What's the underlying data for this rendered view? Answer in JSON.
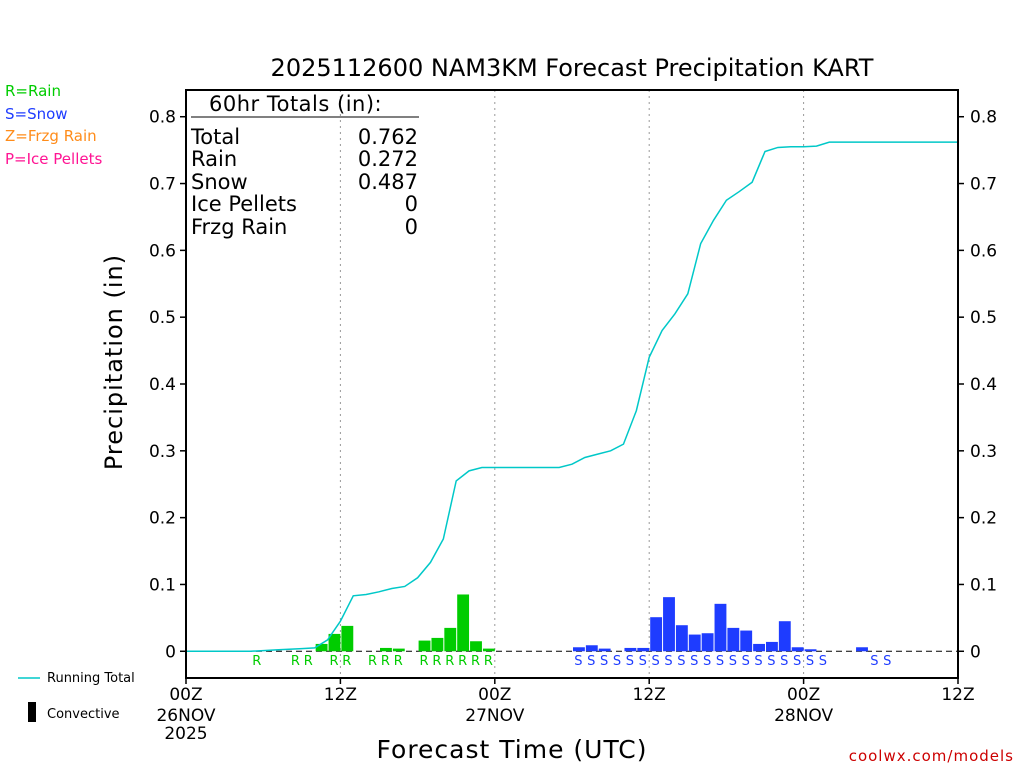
{
  "chart_data": {
    "type": "bar",
    "title": "2025112600 NAM3KM Forecast Precipitation KART",
    "xlabel": "Forecast Time (UTC)",
    "ylabel": "Precipitation (in)",
    "ylim": [
      -0.04,
      0.84
    ],
    "y_ticks": [
      0,
      0.1,
      0.2,
      0.3,
      0.4,
      0.5,
      0.6,
      0.7,
      0.8
    ],
    "y_tick_labels": [
      "0",
      "0.1",
      "0.2",
      "0.3",
      "0.4",
      "0.5",
      "0.6",
      "0.7",
      "0.8"
    ],
    "x_range_hours": [
      0,
      60
    ],
    "x_ticks": [
      {
        "hour": 0,
        "label": "00Z",
        "date": "26NOV",
        "year": "2025"
      },
      {
        "hour": 12,
        "label": "12Z",
        "date": "",
        "year": ""
      },
      {
        "hour": 24,
        "label": "00Z",
        "date": "27NOV",
        "year": ""
      },
      {
        "hour": 36,
        "label": "12Z",
        "date": "",
        "year": ""
      },
      {
        "hour": 48,
        "label": "00Z",
        "date": "28NOV",
        "year": ""
      },
      {
        "hour": 60,
        "label": "12Z",
        "date": "",
        "year": ""
      }
    ],
    "grid_hours": [
      12,
      24,
      36,
      48
    ],
    "series": [
      {
        "name": "Rain",
        "color": "#00cc00",
        "points": [
          [
            11,
            0.011
          ],
          [
            12,
            0.026
          ],
          [
            13,
            0.038
          ],
          [
            16,
            0.005
          ],
          [
            17,
            0.004
          ],
          [
            19,
            0.016
          ],
          [
            20,
            0.02
          ],
          [
            21,
            0.035
          ],
          [
            22,
            0.085
          ],
          [
            23,
            0.015
          ],
          [
            24,
            0.004
          ]
        ]
      },
      {
        "name": "Snow",
        "color": "#1e3cff",
        "points": [
          [
            31,
            0.006
          ],
          [
            32,
            0.009
          ],
          [
            33,
            0.004
          ],
          [
            35,
            0.005
          ],
          [
            36,
            0.005
          ],
          [
            37,
            0.051
          ],
          [
            38,
            0.081
          ],
          [
            39,
            0.039
          ],
          [
            40,
            0.025
          ],
          [
            41,
            0.027
          ],
          [
            42,
            0.071
          ],
          [
            43,
            0.035
          ],
          [
            44,
            0.031
          ],
          [
            45,
            0.011
          ],
          [
            46,
            0.014
          ],
          [
            47,
            0.045
          ],
          [
            48,
            0.006
          ],
          [
            49,
            0.003
          ],
          [
            53,
            0.006
          ]
        ]
      }
    ],
    "running_total": {
      "name": "Running Total",
      "color": "#00c8c8",
      "x": [
        0,
        5,
        6,
        7,
        8,
        9,
        10,
        11,
        12,
        13,
        14,
        15,
        16,
        17,
        18,
        19,
        20,
        21,
        22,
        23,
        24,
        25,
        26,
        27,
        28,
        29,
        30,
        31,
        32,
        33,
        34,
        35,
        36,
        37,
        38,
        39,
        40,
        41,
        42,
        43,
        44,
        45,
        46,
        47,
        48,
        49,
        50,
        51,
        52,
        53,
        54,
        55,
        56,
        57,
        58,
        59,
        60
      ],
      "y": [
        0,
        0,
        0.001,
        0.002,
        0.003,
        0.004,
        0.005,
        0.017,
        0.045,
        0.083,
        0.085,
        0.089,
        0.094,
        0.097,
        0.11,
        0.133,
        0.168,
        0.255,
        0.27,
        0.275,
        0.275,
        0.275,
        0.275,
        0.275,
        0.275,
        0.275,
        0.28,
        0.29,
        0.295,
        0.3,
        0.31,
        0.36,
        0.44,
        0.48,
        0.505,
        0.535,
        0.61,
        0.645,
        0.675,
        0.688,
        0.702,
        0.748,
        0.754,
        0.755,
        0.755,
        0.756,
        0.762,
        0.762,
        0.762,
        0.762,
        0.762,
        0.762,
        0.762,
        0.762,
        0.762,
        0.762,
        0.762
      ]
    },
    "precip_type_labels": {
      "rain": {
        "letter": "R",
        "color": "#00cc00",
        "hours": [
          6,
          9,
          10,
          12,
          13,
          15,
          16,
          17,
          19,
          20,
          21,
          22,
          23,
          24
        ]
      },
      "snow": {
        "letter": "S",
        "color": "#1e3cff",
        "hours": [
          31,
          32,
          33,
          34,
          35,
          36,
          37,
          38,
          39,
          40,
          41,
          42,
          43,
          44,
          45,
          46,
          47,
          48,
          49,
          50,
          54,
          55
        ]
      }
    }
  },
  "totals_box": {
    "heading": "60hr Totals (in):",
    "rows": [
      {
        "label": "Total",
        "value": "0.762"
      },
      {
        "label": "Rain",
        "value": "0.272"
      },
      {
        "label": "Snow",
        "value": "0.487"
      },
      {
        "label": "Ice Pellets",
        "value": "0"
      },
      {
        "label": "Frzg Rain",
        "value": "0"
      }
    ]
  },
  "type_legend": [
    {
      "text": "R=Rain",
      "color": "#00cc00"
    },
    {
      "text": "S=Snow",
      "color": "#1e3cff"
    },
    {
      "text": "Z=Frzg Rain",
      "color": "#ff8c1a"
    },
    {
      "text": "P=Ice Pellets",
      "color": "#ff1493"
    }
  ],
  "bottom_legend": {
    "running_total": "Running Total",
    "convective": "Convective"
  },
  "credit": "coolwx.com/models",
  "colors": {
    "axis": "#000000",
    "grid": "#999999",
    "credit": "#cc0000"
  }
}
